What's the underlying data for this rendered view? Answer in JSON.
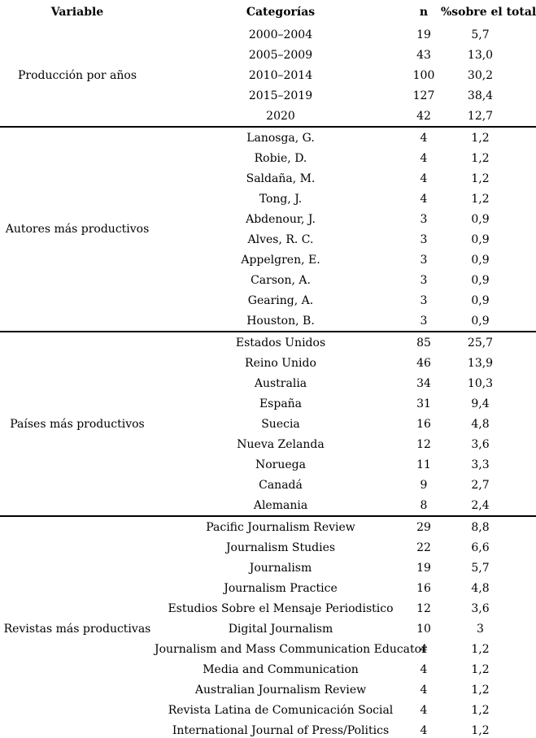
{
  "colors": {
    "background": "#ffffff",
    "text": "#000000",
    "rule": "#000000"
  },
  "table": {
    "columns": [
      "Variable",
      "Categorías",
      "n",
      "%sobre el total"
    ],
    "groups": [
      {
        "variable": "Producción por años",
        "rows": [
          [
            "2000–2004",
            "19",
            "5,7"
          ],
          [
            "2005–2009",
            "43",
            "13,0"
          ],
          [
            "2010–2014",
            "100",
            "30,2"
          ],
          [
            "2015–2019",
            "127",
            "38,4"
          ],
          [
            "2020",
            "42",
            "12,7"
          ]
        ]
      },
      {
        "variable": "Autores más productivos",
        "rows": [
          [
            "Lanosga, G.",
            "4",
            "1,2"
          ],
          [
            "Robie, D.",
            "4",
            "1,2"
          ],
          [
            "Saldaña, M.",
            "4",
            "1,2"
          ],
          [
            "Tong, J.",
            "4",
            "1,2"
          ],
          [
            "Abdenour, J.",
            "3",
            "0,9"
          ],
          [
            "Alves, R. C.",
            "3",
            "0,9"
          ],
          [
            "Appelgren, E.",
            "3",
            "0,9"
          ],
          [
            "Carson, A.",
            "3",
            "0,9"
          ],
          [
            "Gearing, A.",
            "3",
            "0,9"
          ],
          [
            "Houston, B.",
            "3",
            "0,9"
          ]
        ]
      },
      {
        "variable": "Países más productivos",
        "rows": [
          [
            "Estados Unidos",
            "85",
            "25,7"
          ],
          [
            "Reino Unido",
            "46",
            "13,9"
          ],
          [
            "Australia",
            "34",
            "10,3"
          ],
          [
            "España",
            "31",
            "9,4"
          ],
          [
            "Suecia",
            "16",
            "4,8"
          ],
          [
            "Nueva Zelanda",
            "12",
            "3,6"
          ],
          [
            "Noruega",
            "11",
            "3,3"
          ],
          [
            "Canadá",
            "9",
            "2,7"
          ],
          [
            "Alemania",
            "8",
            "2,4"
          ]
        ]
      },
      {
        "variable": "Revistas más productivas",
        "rows": [
          [
            "Pacific Journalism Review",
            "29",
            "8,8"
          ],
          [
            "Journalism Studies",
            "22",
            "6,6"
          ],
          [
            "Journalism",
            "19",
            "5,7"
          ],
          [
            "Journalism Practice",
            "16",
            "4,8"
          ],
          [
            "Estudios Sobre el Mensaje Periodistico",
            "12",
            "3,6"
          ],
          [
            "Digital Journalism",
            "10",
            "3"
          ],
          [
            "Journalism and Mass Communication Educator",
            "4",
            "1,2"
          ],
          [
            "Media and Communication",
            "4",
            "1,2"
          ],
          [
            "Australian Journalism Review",
            "4",
            "1,2"
          ],
          [
            "Revista Latina de Comunicación Social",
            "4",
            "1,2"
          ],
          [
            "International Journal of Press/Politics",
            "4",
            "1,2"
          ]
        ]
      }
    ]
  },
  "chart_data": {
    "type": "table",
    "title": "",
    "columns": [
      "Variable",
      "Categorías",
      "n",
      "%sobre el total"
    ],
    "series": [
      {
        "name": "Producción por años",
        "categories": [
          "2000–2004",
          "2005–2009",
          "2010–2014",
          "2015–2019",
          "2020"
        ],
        "n": [
          19,
          43,
          100,
          127,
          42
        ],
        "percent": [
          5.7,
          13.0,
          30.2,
          38.4,
          12.7
        ]
      },
      {
        "name": "Autores más productivos",
        "categories": [
          "Lanosga, G.",
          "Robie, D.",
          "Saldaña, M.",
          "Tong, J.",
          "Abdenour, J.",
          "Alves, R. C.",
          "Appelgren, E.",
          "Carson, A.",
          "Gearing, A.",
          "Houston, B."
        ],
        "n": [
          4,
          4,
          4,
          4,
          3,
          3,
          3,
          3,
          3,
          3
        ],
        "percent": [
          1.2,
          1.2,
          1.2,
          1.2,
          0.9,
          0.9,
          0.9,
          0.9,
          0.9,
          0.9
        ]
      },
      {
        "name": "Países más productivos",
        "categories": [
          "Estados Unidos",
          "Reino Unido",
          "Australia",
          "España",
          "Suecia",
          "Nueva Zelanda",
          "Noruega",
          "Canadá",
          "Alemania"
        ],
        "n": [
          85,
          46,
          34,
          31,
          16,
          12,
          11,
          9,
          8
        ],
        "percent": [
          25.7,
          13.9,
          10.3,
          9.4,
          4.8,
          3.6,
          3.3,
          2.7,
          2.4
        ]
      },
      {
        "name": "Revistas más productivas",
        "categories": [
          "Pacific Journalism Review",
          "Journalism Studies",
          "Journalism",
          "Journalism Practice",
          "Estudios Sobre el Mensaje Periodistico",
          "Digital Journalism",
          "Journalism and Mass Communication Educator",
          "Media and Communication",
          "Australian Journalism Review",
          "Revista Latina de Comunicación Social",
          "International Journal of Press/Politics"
        ],
        "n": [
          29,
          22,
          19,
          16,
          12,
          10,
          4,
          4,
          4,
          4,
          4
        ],
        "percent": [
          8.8,
          6.6,
          5.7,
          4.8,
          3.6,
          3,
          1.2,
          1.2,
          1.2,
          1.2,
          1.2
        ]
      }
    ]
  }
}
